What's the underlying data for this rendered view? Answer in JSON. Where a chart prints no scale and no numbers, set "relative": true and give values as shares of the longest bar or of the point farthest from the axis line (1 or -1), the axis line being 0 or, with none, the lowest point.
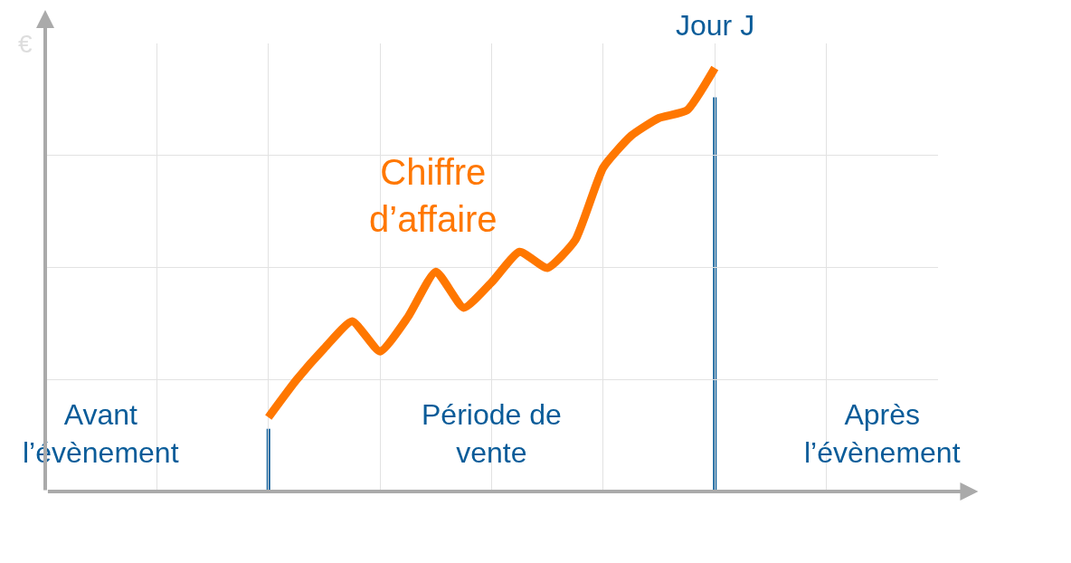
{
  "chart_data": {
    "type": "line",
    "relative": true,
    "grid": true,
    "categories": [
      null,
      null,
      null,
      null,
      null,
      null,
      null,
      null,
      null,
      null,
      null,
      null,
      null,
      null,
      null,
      null,
      null
    ],
    "series": [
      {
        "name": "Chiffre d’affaire",
        "color": "#ff7700",
        "marker": "none",
        "values": [
          0.175,
          0.263,
          0.338,
          0.402,
          0.331,
          0.412,
          0.519,
          0.434,
          0.494,
          0.566,
          0.528,
          0.594,
          0.765,
          0.84,
          0.882,
          0.9,
          1.0
        ]
      }
    ],
    "annotations": [
      "€",
      "Avant\nl’évènement",
      "Période de\nvente",
      "Après\nl’évènement",
      "Jour J"
    ]
  }
}
